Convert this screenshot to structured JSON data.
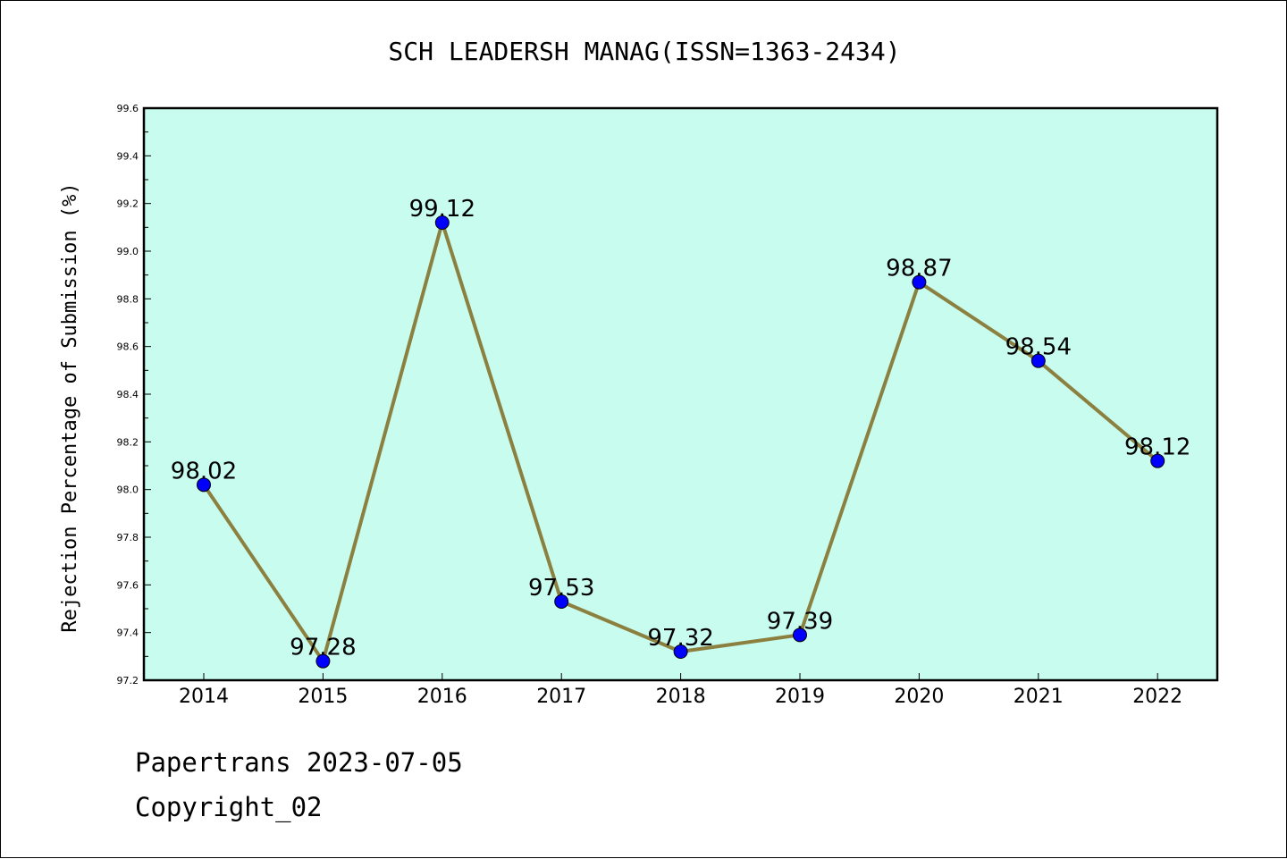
{
  "chart_data": {
    "type": "line",
    "title": "SCH LEADERSH MANAG(ISSN=1363-2434)",
    "ylabel": "Rejection Percentage of Submission (%)",
    "xlabel": "",
    "categories": [
      "2014",
      "2015",
      "2016",
      "2017",
      "2018",
      "2019",
      "2020",
      "2021",
      "2022"
    ],
    "values": [
      98.02,
      97.28,
      99.12,
      97.53,
      97.32,
      97.39,
      98.87,
      98.54,
      98.12
    ],
    "data_labels": [
      "98.02",
      "97.28",
      "99.12",
      "97.53",
      "97.32",
      "97.39",
      "98.87",
      "98.54",
      "98.12"
    ],
    "ylim": [
      97.2,
      99.6
    ],
    "yticks": [
      "97.2",
      "97.4",
      "97.6",
      "97.8",
      "98.0",
      "98.2",
      "98.4",
      "98.6",
      "98.8",
      "99.0",
      "99.2",
      "99.4",
      "99.6"
    ],
    "grid": false,
    "legend": "none",
    "colors": {
      "plot_background": "#c8fcee",
      "line": "#8b8040",
      "marker": "#0000ff"
    }
  },
  "footer": {
    "line1": "Papertrans 2023-07-05",
    "line2": "Copyright_02"
  }
}
